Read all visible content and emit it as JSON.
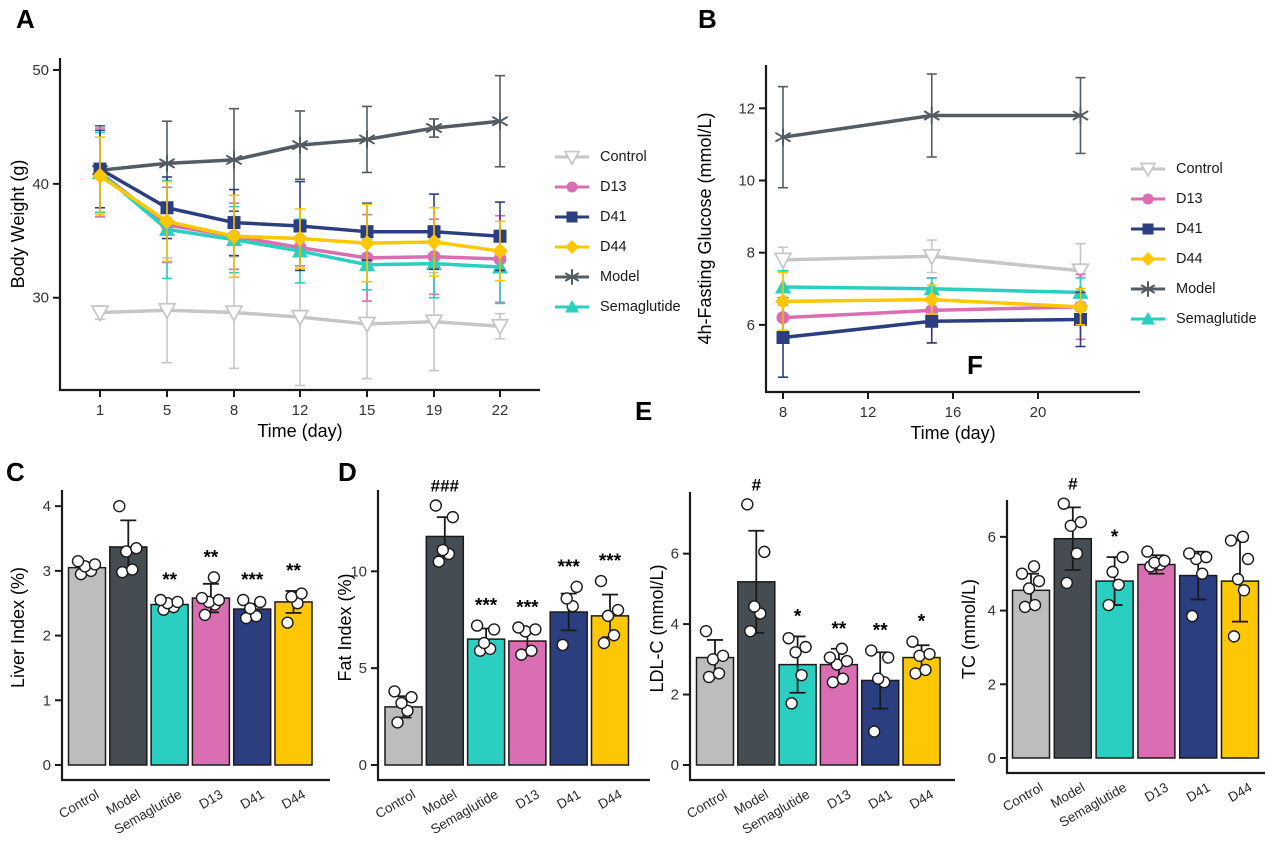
{
  "panels": [
    "A",
    "B",
    "C",
    "D",
    "E",
    "F"
  ],
  "colors": {
    "control": "#bdbdbd",
    "control_line": "#c6c6c6",
    "model": "#454d53",
    "model_line": "#545c63",
    "semaglutide": "#2acfc1",
    "d13": "#d96fb2",
    "d41": "#2b3e80",
    "d44": "#fec703",
    "axis": "#1a1a1a",
    "point_fill": "#ffffff",
    "tick_text": "#333333"
  },
  "legend": {
    "items": [
      {
        "key": "control",
        "label": "Control",
        "marker": "triangle-down-open"
      },
      {
        "key": "d13",
        "label": "D13",
        "marker": "circle"
      },
      {
        "key": "d41",
        "label": "D41",
        "marker": "square"
      },
      {
        "key": "d44",
        "label": "D44",
        "marker": "diamond"
      },
      {
        "key": "model",
        "label": "Model",
        "marker": "asterisk"
      },
      {
        "key": "semaglutide",
        "label": "Semaglutide",
        "marker": "triangle-up"
      }
    ]
  },
  "chart_data": [
    {
      "panel": "A",
      "type": "line",
      "xlabel": "Time (day)",
      "ylabel": "Body Weight (g)",
      "x": [
        1,
        5,
        8,
        12,
        15,
        19,
        22
      ],
      "xticks": [
        1,
        5,
        8,
        12,
        15,
        19,
        22
      ],
      "yticks": [
        30,
        40,
        50
      ],
      "ylim": [
        21.9,
        51.05
      ],
      "x_scale": "categorical",
      "legend_position": "right",
      "series": [
        {
          "name": "Control",
          "key": "control",
          "marker": "triangle-down-open",
          "values": [
            28.7,
            28.9,
            28.7,
            28.3,
            27.7,
            27.9,
            27.5
          ],
          "err": [
            0.6,
            4.6,
            4.9,
            6.0,
            4.8,
            4.3,
            1.1
          ]
        },
        {
          "name": "Model",
          "key": "model",
          "marker": "asterisk",
          "values": [
            41.2,
            41.8,
            42.1,
            43.4,
            43.9,
            44.9,
            45.5
          ],
          "err": [
            3.9,
            3.7,
            4.5,
            3.0,
            2.9,
            0.8,
            4.0
          ]
        },
        {
          "name": "D13",
          "key": "d13",
          "marker": "circle",
          "values": [
            41.0,
            36.4,
            35.4,
            34.4,
            33.5,
            33.6,
            33.4
          ],
          "err": [
            3.9,
            3.3,
            2.9,
            1.6,
            3.8,
            3.3,
            3.8
          ]
        },
        {
          "name": "Semaglutide",
          "key": "semaglutide",
          "marker": "triangle-up",
          "values": [
            41.0,
            36.0,
            35.1,
            34.1,
            32.9,
            33.0,
            32.7
          ],
          "err": [
            3.5,
            4.3,
            2.9,
            2.8,
            2.2,
            3.0,
            3.2
          ]
        },
        {
          "name": "D41",
          "key": "d41",
          "marker": "square",
          "values": [
            41.3,
            37.9,
            36.6,
            36.3,
            35.8,
            35.8,
            35.4
          ],
          "err": [
            3.4,
            2.7,
            2.9,
            3.9,
            2.5,
            3.3,
            3.0
          ]
        },
        {
          "name": "D44",
          "key": "d44",
          "marker": "diamond",
          "values": [
            40.7,
            36.7,
            35.4,
            35.2,
            34.8,
            34.9,
            34.1
          ],
          "err": [
            3.4,
            3.5,
            3.6,
            2.6,
            3.4,
            3.0,
            2.6
          ]
        }
      ]
    },
    {
      "panel": "B",
      "type": "line",
      "xlabel": "Time (day)",
      "ylabel": "4h-Fasting Glucose (mmol/L)",
      "x": [
        8,
        15,
        22
      ],
      "xticks": [
        8,
        12,
        16,
        20
      ],
      "yticks": [
        6,
        8,
        10,
        12
      ],
      "xlim": [
        7.2,
        24.8
      ],
      "ylim": [
        4.14,
        13.2
      ],
      "x_scale": "linear",
      "legend_position": "right",
      "series": [
        {
          "name": "Control",
          "key": "control",
          "marker": "triangle-down-open",
          "values": [
            7.8,
            7.9,
            7.5
          ],
          "err": [
            0.35,
            0.45,
            0.75
          ]
        },
        {
          "name": "Model",
          "key": "model",
          "marker": "asterisk",
          "values": [
            11.2,
            11.8,
            11.8
          ],
          "err": [
            1.4,
            1.15,
            1.05
          ]
        },
        {
          "name": "D13",
          "key": "d13",
          "marker": "circle",
          "values": [
            6.2,
            6.4,
            6.5
          ],
          "err": [
            0.35,
            0.9,
            0.9
          ]
        },
        {
          "name": "Semaglutide",
          "key": "semaglutide",
          "marker": "triangle-up",
          "values": [
            7.05,
            7.0,
            6.9
          ],
          "err": [
            0.45,
            0.3,
            0.4
          ]
        },
        {
          "name": "D41",
          "key": "d41",
          "marker": "square",
          "values": [
            5.65,
            6.1,
            6.15
          ],
          "err": [
            1.1,
            0.6,
            0.75
          ]
        },
        {
          "name": "D44",
          "key": "d44",
          "marker": "diamond",
          "values": [
            6.65,
            6.7,
            6.5
          ],
          "err": [
            0.8,
            0.4,
            0.5
          ]
        }
      ]
    },
    {
      "panel": "C",
      "type": "bar",
      "ylabel": "Liver Index (%)",
      "categories": [
        "Control",
        "Model",
        "Semaglutide",
        "D13",
        "D41",
        "D44"
      ],
      "keys": [
        "control",
        "model",
        "semaglutide",
        "d13",
        "d41",
        "d44"
      ],
      "yticks": [
        0,
        1,
        2,
        3,
        4
      ],
      "ylim": [
        0,
        4.25
      ],
      "values": [
        3.05,
        3.37,
        2.48,
        2.58,
        2.41,
        2.52
      ],
      "err": [
        0.08,
        0.41,
        0.07,
        0.22,
        0.08,
        0.17
      ],
      "annotations": [
        "",
        "",
        "**",
        "**",
        "***",
        "**"
      ],
      "points": [
        [
          2.95,
          3.0,
          3.07,
          3.1,
          3.15
        ],
        [
          2.98,
          3.02,
          3.3,
          3.35,
          4.0
        ],
        [
          2.4,
          2.44,
          2.5,
          2.52,
          2.55
        ],
        [
          2.32,
          2.48,
          2.52,
          2.55,
          2.58,
          2.9
        ],
        [
          2.27,
          2.3,
          2.42,
          2.52,
          2.55
        ],
        [
          2.2,
          2.5,
          2.6,
          2.65
        ]
      ]
    },
    {
      "panel": "D",
      "type": "bar",
      "ylabel": "Fat Index (%)",
      "categories": [
        "Control",
        "Model",
        "Semaglutide",
        "D13",
        "D41",
        "D44"
      ],
      "keys": [
        "control",
        "model",
        "semaglutide",
        "d13",
        "d41",
        "d44"
      ],
      "yticks": [
        0,
        5,
        10
      ],
      "ylim": [
        0,
        14.2
      ],
      "values": [
        3.0,
        11.8,
        6.5,
        6.4,
        7.9,
        7.7
      ],
      "err": [
        0.55,
        1.0,
        0.55,
        0.55,
        0.95,
        1.1
      ],
      "annotations": [
        "",
        "###",
        "***",
        "***",
        "***",
        "***"
      ],
      "points": [
        [
          2.2,
          2.8,
          3.2,
          3.5,
          3.8
        ],
        [
          10.5,
          10.9,
          11.1,
          12.8,
          13.4
        ],
        [
          5.9,
          6.0,
          6.3,
          7.0,
          7.2
        ],
        [
          5.7,
          5.9,
          6.9,
          7.0,
          7.1
        ],
        [
          6.2,
          8.2,
          8.6,
          9.2
        ],
        [
          6.3,
          6.7,
          7.7,
          8.0,
          9.5
        ]
      ]
    },
    {
      "panel": "E",
      "type": "bar",
      "ylabel": "LDL-C (mmol/L)",
      "categories": [
        "Control",
        "Model",
        "Semaglutide",
        "D13",
        "D41",
        "D44"
      ],
      "keys": [
        "control",
        "model",
        "semaglutide",
        "d13",
        "d41",
        "d44"
      ],
      "yticks": [
        0,
        2,
        4,
        6
      ],
      "ylim": [
        0,
        7.75
      ],
      "values": [
        3.05,
        5.2,
        2.85,
        2.85,
        2.4,
        3.05
      ],
      "err": [
        0.5,
        1.45,
        0.8,
        0.45,
        0.8,
        0.35
      ],
      "annotations": [
        "",
        "#",
        "*",
        "**",
        "**",
        "*"
      ],
      "points": [
        [
          2.5,
          2.6,
          3.0,
          3.1,
          3.8
        ],
        [
          3.8,
          4.3,
          4.5,
          6.05,
          7.4
        ],
        [
          1.75,
          2.55,
          3.2,
          3.35,
          3.6
        ],
        [
          2.35,
          2.45,
          2.85,
          2.95,
          3.05,
          3.3
        ],
        [
          0.95,
          2.35,
          2.45,
          3.05,
          3.25
        ],
        [
          2.6,
          2.7,
          3.1,
          3.15,
          3.5
        ]
      ]
    },
    {
      "panel": "F",
      "type": "bar",
      "ylabel": "TC (mmol/L)",
      "categories": [
        "Control",
        "Model",
        "Semaglutide",
        "D13",
        "D41",
        "D44"
      ],
      "keys": [
        "control",
        "model",
        "semaglutide",
        "d13",
        "d41",
        "d44"
      ],
      "yticks": [
        0,
        2,
        4,
        6
      ],
      "ylim": [
        0,
        7.0
      ],
      "values": [
        4.55,
        5.95,
        4.8,
        5.25,
        4.95,
        4.8
      ],
      "err": [
        0.45,
        0.85,
        0.65,
        0.25,
        0.65,
        1.1
      ],
      "annotations": [
        "",
        "#",
        "*",
        "",
        "",
        ""
      ],
      "points": [
        [
          4.1,
          4.15,
          4.6,
          4.8,
          5.0,
          5.2
        ],
        [
          4.75,
          5.55,
          6.3,
          6.4,
          6.9
        ],
        [
          4.15,
          4.7,
          5.05,
          5.45
        ],
        [
          5.2,
          5.25,
          5.3,
          5.35,
          5.6
        ],
        [
          3.85,
          5.0,
          5.4,
          5.45,
          5.55
        ],
        [
          3.3,
          4.55,
          4.85,
          5.4,
          5.9,
          6.0
        ]
      ]
    }
  ]
}
